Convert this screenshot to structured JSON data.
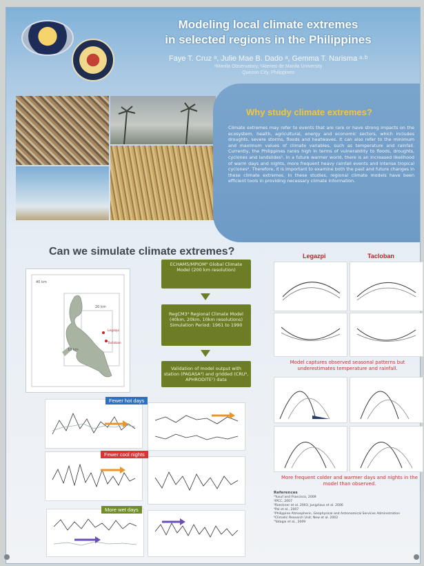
{
  "poster": {
    "title_line1": "Modeling local climate extremes",
    "title_line2": "in selected regions in the Philippines",
    "authors": "Faye T. Cruz ᵃ, Julie Mae B. Dado ᵃ, Gemma T. Narisma ᵃ·ᵇ",
    "affiliation1": "ᵃManila Observatory, ᵇAteneo de Manila University",
    "affiliation2": "Quezon City, Philippines"
  },
  "why": {
    "heading": "Why study climate extremes?",
    "body": "Climate extremes may refer to events that are rare or have strong impacts on the ecosystem, health, agricultural, energy and economic sectors, which includes droughts, severe storms, floods and heatwaves. It can also refer to the minimum and maximum values of climate variables, such as temperature and rainfall. Currently, the Philippines ranks high in terms of vulnerability to floods, droughts, cyclones and landslides¹. In a future warmer world, there is an increased likelihood of warm days and nights, more frequent heavy rainfall events and intense tropical cyclones². Therefore, it is important to examine both the past and future changes in these climate extremes. In these studies, regional climate models have been efficient tools in providing necessary climate information."
  },
  "simulate": {
    "heading": "Can we simulate climate extremes?",
    "box1": "ECHAM5/MPIOM³ Global Climate Model (200 km resolution)",
    "box2": "RegCM3⁴ Regional Climate Model (40km, 20km, 10km resolutions) Simulation Period: 1961 to 1990",
    "box3": "Validation of model output with station (PAGASA⁵) and gridded (CRU⁶, APHRODITE⁷) data"
  },
  "map": {
    "label_40": "40 km",
    "label_20": "20 km",
    "label_10": "10 km",
    "site_a": "Legazpi",
    "site_b": "Tacloban"
  },
  "badges": {
    "hot": "Fewer hot days",
    "cool": "Fewer cool nights",
    "wet": "More wet days"
  },
  "sites": {
    "left": "Legazpi",
    "right": "Tacloban"
  },
  "captions": {
    "seasonal": "Model captures observed seasonal patterns but underestimates temperature and rainfall.",
    "distribution": "More frequent colder and warmer days and nights in the model than observed."
  },
  "references": {
    "heading": "References",
    "lines": [
      "¹Yusuf and Francisco, 2009",
      "²IPCC, 2007",
      "³Roeckner et al. 2003; Jungclaus et al. 2006",
      "⁴Pal et al., 2007",
      "⁵Philippine Atmospheric, Geophysical and Astronomical Services Administration",
      "⁶Climatic Research Unit; New et al. 2002",
      "⁷Yatagai et al., 2009"
    ]
  },
  "colors": {
    "badge_hot": "#2f6fc0",
    "badge_cool": "#d93535",
    "badge_wet": "#6f8e23",
    "box_green": "#6c7d26",
    "why_gold": "#f3c63a"
  }
}
